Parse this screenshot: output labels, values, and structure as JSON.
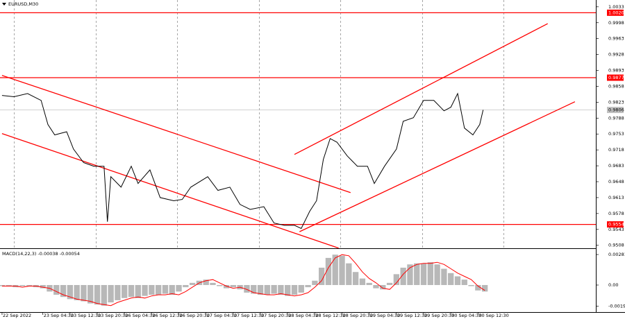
{
  "chart_data": [
    {
      "type": "line",
      "title": "EURUSD,M30",
      "x": [
        0,
        7,
        15,
        23,
        27,
        31,
        38,
        42,
        48,
        54,
        60,
        62,
        64,
        70,
        76,
        80,
        87,
        93,
        101,
        106,
        111,
        121,
        127,
        134,
        140,
        146,
        154,
        160,
        166,
        172,
        176,
        181,
        185,
        189,
        193,
        197,
        203,
        209,
        215,
        219,
        225,
        232,
        236,
        242,
        248,
        254,
        260,
        264,
        268,
        272,
        277,
        281,
        283
      ],
      "series": [
        {
          "color": "#000000",
          "values": [
            0.9838,
            0.9835,
            0.9842,
            0.9827,
            0.9774,
            0.9751,
            0.9758,
            0.972,
            0.969,
            0.9682,
            0.9682,
            0.956,
            0.9659,
            0.9636,
            0.9682,
            0.9644,
            0.9674,
            0.9613,
            0.9606,
            0.9609,
            0.9636,
            0.9659,
            0.9629,
            0.9636,
            0.9598,
            0.9587,
            0.9593,
            0.9557,
            0.9552,
            0.9552,
            0.9545,
            0.9583,
            0.9606,
            0.9697,
            0.9743,
            0.9735,
            0.9705,
            0.9682,
            0.9682,
            0.9644,
            0.9682,
            0.972,
            0.9781,
            0.9789,
            0.9827,
            0.9827,
            0.9804,
            0.9812,
            0.9842,
            0.9766,
            0.9751,
            0.9774,
            0.9806
          ]
        }
      ],
      "xlim": [
        -1.2,
        349.3
      ],
      "ylim": [
        0.9503,
        1.0048
      ],
      "yticks": [
        1.0033,
        0.9998,
        0.9963,
        0.9928,
        0.9893,
        0.9858,
        0.9823,
        0.9788,
        0.9753,
        0.9718,
        0.9683,
        0.9648,
        0.9613,
        0.9578,
        0.9543,
        0.9508
      ],
      "xgrid": [
        7,
        55,
        103,
        151,
        199,
        247,
        295
      ],
      "levels": [
        {
          "value": 1.002,
          "label": "1.0020"
        },
        0.9877,
        0.9554
      ],
      "level_color": "#ff0000",
      "current": 0.9806,
      "current_color": "#c0c0c0",
      "trendlines": [
        {
          "x": [
            0,
            205
          ],
          "values": [
            0.9882,
            0.9624
          ]
        },
        {
          "x": [
            0,
            198
          ],
          "values": [
            0.9754,
            0.9502
          ]
        },
        {
          "x": [
            172,
            321
          ],
          "values": [
            0.9708,
            0.9996
          ]
        },
        {
          "x": [
            175,
            337
          ],
          "values": [
            0.9538,
            0.9824
          ]
        }
      ],
      "trend_color": "#ff0000"
    },
    {
      "type": "bar",
      "title": "MACD(14,22,3) -0.00038 -0.00054",
      "x": [
        0,
        4,
        8,
        12,
        16,
        20,
        24,
        28,
        32,
        36,
        40,
        44,
        48,
        52,
        56,
        60,
        64,
        68,
        72,
        76,
        80,
        84,
        88,
        92,
        96,
        100,
        104,
        108,
        112,
        116,
        120,
        124,
        128,
        132,
        136,
        140,
        144,
        148,
        152,
        156,
        160,
        164,
        168,
        172,
        176,
        180,
        184,
        188,
        192,
        196,
        200,
        204,
        208,
        212,
        216,
        220,
        224,
        228,
        232,
        236,
        240,
        244,
        248,
        252,
        256,
        260,
        264,
        268,
        272,
        276,
        280,
        284
      ],
      "values": [
        -0.0001,
        -0.0001,
        -0.0002,
        -0.0001,
        -0.0001,
        -0.0002,
        -0.0003,
        -0.0006,
        -0.0009,
        -0.0011,
        -0.0013,
        -0.0014,
        -0.0015,
        -0.0017,
        -0.0018,
        -0.0019,
        -0.0016,
        -0.0014,
        -0.0012,
        -0.0011,
        -0.0012,
        -0.001,
        -0.0009,
        -0.0009,
        -0.0008,
        -0.0009,
        -0.0006,
        -0.0002,
        0.0002,
        0.0004,
        0.0005,
        0.0002,
        -0.0001,
        -0.0003,
        -0.0002,
        -0.0004,
        -0.0007,
        -0.0008,
        -0.0009,
        -0.0009,
        -0.0008,
        -0.0009,
        -0.001,
        -0.0009,
        -0.0007,
        -0.0002,
        0.0004,
        0.0016,
        0.0025,
        0.0028,
        0.0027,
        0.002,
        0.0012,
        0.0006,
        0.0002,
        -0.0003,
        -0.0004,
        0.0002,
        0.001,
        0.0016,
        0.0019,
        0.002,
        0.002,
        0.0021,
        0.0019,
        0.0015,
        0.0011,
        0.0008,
        0.0005,
        -0.0001,
        -0.0005,
        -0.0006
      ],
      "color": "#b8b8b8",
      "line": {
        "color": "#ff0000",
        "values": [
          -0.0001,
          -0.0001,
          -0.0001,
          -0.0002,
          -0.0001,
          -0.0001,
          -0.0002,
          -0.0003,
          -0.0006,
          -0.0009,
          -0.0011,
          -0.0013,
          -0.0014,
          -0.0015,
          -0.0017,
          -0.0018,
          -0.0019,
          -0.0016,
          -0.0014,
          -0.0012,
          -0.0011,
          -0.0012,
          -0.001,
          -0.0009,
          -0.0009,
          -0.0008,
          -0.0009,
          -0.0006,
          -0.0002,
          0.0002,
          0.0004,
          0.0005,
          0.0002,
          -0.0001,
          -0.0003,
          -0.0002,
          -0.0004,
          -0.0007,
          -0.0008,
          -0.0009,
          -0.0009,
          -0.0008,
          -0.0009,
          -0.001,
          -0.0009,
          -0.0007,
          -0.0002,
          0.0004,
          0.0016,
          0.0025,
          0.0028,
          0.0027,
          0.002,
          0.0012,
          0.0006,
          0.0002,
          -0.0003,
          -0.0004,
          0.0002,
          0.001,
          0.0016,
          0.0019,
          0.002,
          0.002,
          0.0021,
          0.0019,
          0.0015,
          0.0011,
          0.0008,
          0.0005,
          -0.0001,
          -0.0005
        ]
      },
      "xlim": [
        -1.2,
        349.3
      ],
      "ylim": [
        -0.0023,
        0.00326
      ],
      "yticks": [
        0.00281,
        {
          "value": 0,
          "label": "0.00"
        },
        -0.00194
      ],
      "xticks": [
        {
          "value": 0,
          "label": "22 Sep 2022"
        },
        {
          "value": 24,
          "label": "23 Sep 04:30"
        },
        {
          "value": 40,
          "label": "23 Sep 12:30"
        },
        {
          "value": 56,
          "label": "23 Sep 20:30"
        },
        {
          "value": 72,
          "label": "26 Sep 04:30"
        },
        {
          "value": 88,
          "label": "26 Sep 12:30"
        },
        {
          "value": 104,
          "label": "26 Sep 20:30"
        },
        {
          "value": 120,
          "label": "27 Sep 04:30"
        },
        {
          "value": 136,
          "label": "27 Sep 12:30"
        },
        {
          "value": 152,
          "label": "27 Sep 20:30"
        },
        {
          "value": 168,
          "label": "28 Sep 04:30"
        },
        {
          "value": 184,
          "label": "28 Sep 12:30"
        },
        {
          "value": 200,
          "label": "28 Sep 20:30"
        },
        {
          "value": 216,
          "label": "29 Sep 04:30"
        },
        {
          "value": 232,
          "label": "29 Sep 12:30"
        },
        {
          "value": 248,
          "label": "29 Sep 20:30"
        },
        {
          "value": 264,
          "label": "30 Sep 04:30"
        },
        {
          "value": 280,
          "label": "30 Sep 12:30"
        }
      ]
    }
  ]
}
